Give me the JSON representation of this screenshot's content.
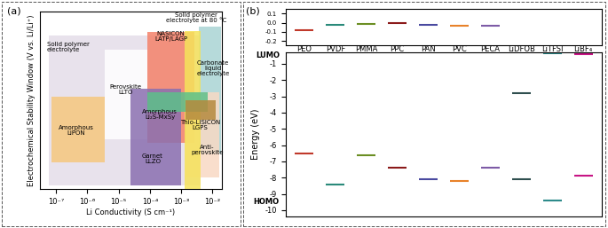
{
  "chart_data": [
    {
      "type": "region",
      "title": "(a)",
      "xlabel": "Li Conductivity (S cm⁻¹)",
      "ylabel": "Electrochemical Stability Window (V vs. Li/Li⁺)",
      "log": "x",
      "tick_labels": "x",
      "xlim": [
        3e-08,
        0.02
      ],
      "ylim": [
        0,
        6
      ],
      "xticks": [
        {
          "value": 1e-07,
          "label": "10⁻⁷"
        },
        {
          "value": 1e-06,
          "label": "10⁻⁶"
        },
        {
          "value": 1e-05,
          "label": "10⁻⁵"
        },
        {
          "value": 0.0001,
          "label": "10⁻⁴"
        },
        {
          "value": 0.001,
          "label": "10⁻³"
        },
        {
          "value": 0.01,
          "label": "10⁻²"
        }
      ],
      "regions": [
        {
          "name": "Solid polymer\nelectrolyte",
          "x": [
            6e-08,
            0.0042
          ],
          "y": [
            0.13,
            5.2
          ],
          "color": "#e4dde9"
        },
        {
          "name": "Amorphous\nLiPON",
          "x": [
            7e-08,
            3.6e-06
          ],
          "y": [
            0.91,
            3.13
          ],
          "color": "#f5c77e"
        },
        {
          "name": "Perovskite\nLLTO",
          "x": [
            3.6e-06,
            8.3e-05
          ],
          "y": [
            1.7,
            4.7
          ],
          "color": "#ffffff"
        },
        {
          "name": "NASICON\nLATP/LAGP",
          "x": [
            8.3e-05,
            0.0027
          ],
          "y": [
            1.57,
            5.3
          ],
          "color": "#f4826a"
        },
        {
          "name": "Carbonate\nliquid\nelectrolyte",
          "x": [
            0.0037,
            0.019
          ],
          "y": [
            1.2,
            5.5
          ],
          "color": "#a9d4d4"
        },
        {
          "name": "Anti-\nperovskite",
          "x": [
            0.0014,
            0.016
          ],
          "y": [
            0.4,
            3.26
          ],
          "color": "#f8d9c4"
        },
        {
          "name": "Garnet\nLLZO",
          "x": [
            2.4e-05,
            0.001
          ],
          "y": [
            0.13,
            3.4
          ],
          "color": "#8a6fb0"
        },
        {
          "name": "Solid polymer\nelectrolyte at 80 °C",
          "x": [
            0.00125,
            0.0042
          ],
          "y": [
            0,
            5.35
          ],
          "color": "#f5e35a"
        },
        {
          "name": "Amorphous\nLi₂S-MxSy",
          "x": [
            8.3e-05,
            0.0069
          ],
          "y": [
            2.6,
            3.26
          ],
          "color": "#5cc08a"
        },
        {
          "name": "Thio-LISICON\nLGPS",
          "x": [
            0.0014,
            0.013
          ],
          "y": [
            2.35,
            3.0
          ],
          "color": "#b58a3e"
        }
      ]
    },
    {
      "type": "energy_level",
      "title": "(b)",
      "ylabel": "Energy (eV)",
      "tick_labels": "y",
      "categories": [
        "PEO",
        "PVDF",
        "PMMA",
        "PPC",
        "PAN",
        "PVC",
        "PECA",
        "LiDFOB",
        "LiTFSI",
        "LiBF₄"
      ],
      "colors": [
        "#c0392b",
        "#2a8a7a",
        "#6b8e23",
        "#8b1a1a",
        "#4a4aa0",
        "#e8822a",
        "#7d5ba6",
        "#2f4f4f",
        "#2e8b8b",
        "#c71585"
      ],
      "panels": [
        {
          "ylim": [
            -0.25,
            0.15
          ],
          "yticks": [
            0.1,
            {
              "value": 0,
              "label": "0.0"
            },
            -0.1,
            -0.2
          ]
        },
        {
          "ylim": [
            -10.4,
            -0.3
          ],
          "yticks": [
            -1,
            -2,
            -3,
            -4,
            -5,
            -6,
            -7,
            -8,
            -9,
            -10
          ]
        }
      ],
      "series": [
        {
          "name": "LUMO",
          "values": [
            -0.08,
            -0.02,
            -0.01,
            0.0,
            -0.02,
            -0.03,
            -0.03,
            -2.8,
            -0.35,
            -0.4
          ]
        },
        {
          "name": "HOMO",
          "values": [
            -6.5,
            -8.4,
            -6.6,
            -7.4,
            -8.1,
            -8.2,
            -7.4,
            -8.1,
            -9.4,
            -7.9
          ]
        }
      ]
    }
  ]
}
